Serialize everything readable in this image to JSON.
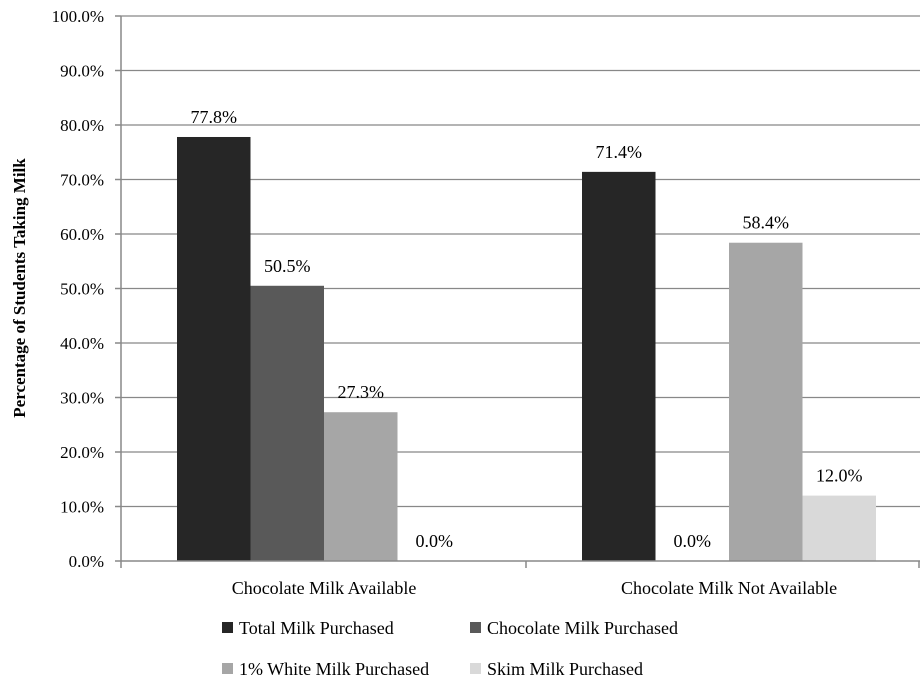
{
  "chart_data": {
    "type": "bar",
    "title": "",
    "xlabel": "",
    "ylabel": "Percentage of Students Taking Milk",
    "ylim": [
      0,
      100
    ],
    "yticks": [
      "0.0%",
      "10.0%",
      "20.0%",
      "30.0%",
      "40.0%",
      "50.0%",
      "60.0%",
      "70.0%",
      "80.0%",
      "90.0%",
      "100.0%"
    ],
    "grid": true,
    "legend_position": "bottom",
    "categories": [
      "Chocolate Milk Available",
      "Chocolate Milk Not Available"
    ],
    "series": [
      {
        "name": "Total Milk Purchased",
        "color": "#262626",
        "values": [
          77.8,
          71.4
        ],
        "labels": [
          "77.8%",
          "71.4%"
        ]
      },
      {
        "name": "Chocolate Milk Purchased",
        "color": "#595959",
        "values": [
          50.5,
          0.0
        ],
        "labels": [
          "50.5%",
          "0.0%"
        ]
      },
      {
        "name": "1% White Milk Purchased",
        "color": "#a6a6a6",
        "values": [
          27.3,
          58.4
        ],
        "labels": [
          "27.3%",
          "58.4%"
        ]
      },
      {
        "name": "Skim Milk Purchased",
        "color": "#d9d9d9",
        "values": [
          0.0,
          12.0
        ],
        "labels": [
          "0.0%",
          "12.0%"
        ]
      }
    ]
  }
}
